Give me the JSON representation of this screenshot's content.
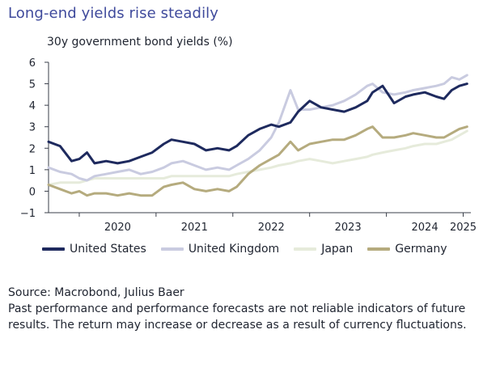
{
  "title": "Long-end yields rise steadily",
  "subtitle": "30y government bond yields (%)",
  "source": "Source: Macrobond, Julius Baer",
  "disclaimer": "Past performance and performance forecasts are not reliable indicators of future results. The return may increase or decrease as a result of currency fluctuations.",
  "colors": {
    "United States": "#1e2a5e",
    "United Kingdom": "#c9cbe0",
    "Japan": "#e6ebdb",
    "Germany": "#b5ab7e"
  },
  "chart_data": {
    "type": "line",
    "title": "30y government bond yields (%)",
    "xlabel": "",
    "ylabel": "",
    "xlim": [
      2019.6,
      2025.1
    ],
    "ylim": [
      -1,
      6
    ],
    "yticks": [
      -1,
      0,
      1,
      2,
      3,
      4,
      5,
      6
    ],
    "xticks": [
      "2020",
      "2021",
      "2022",
      "2023",
      "2024",
      "2025"
    ],
    "grid": false,
    "legend": "bottom",
    "series": [
      {
        "name": "United States",
        "x": [
          2019.6,
          2019.75,
          2019.9,
          2020.0,
          2020.1,
          2020.2,
          2020.35,
          2020.5,
          2020.65,
          2020.8,
          2020.95,
          2021.1,
          2021.2,
          2021.35,
          2021.5,
          2021.65,
          2021.8,
          2021.95,
          2022.05,
          2022.2,
          2022.35,
          2022.5,
          2022.6,
          2022.75,
          2022.85,
          2023.0,
          2023.15,
          2023.3,
          2023.45,
          2023.6,
          2023.75,
          2023.82,
          2023.95,
          2024.1,
          2024.25,
          2024.35,
          2024.5,
          2024.65,
          2024.75,
          2024.85,
          2024.95,
          2025.05
        ],
        "y": [
          2.3,
          2.1,
          1.4,
          1.5,
          1.8,
          1.3,
          1.4,
          1.3,
          1.4,
          1.6,
          1.8,
          2.2,
          2.4,
          2.3,
          2.2,
          1.9,
          2.0,
          1.9,
          2.1,
          2.6,
          2.9,
          3.1,
          3.0,
          3.2,
          3.7,
          4.2,
          3.9,
          3.8,
          3.7,
          3.9,
          4.2,
          4.6,
          4.9,
          4.1,
          4.4,
          4.5,
          4.6,
          4.4,
          4.3,
          4.7,
          4.9,
          5.0
        ]
      },
      {
        "name": "United Kingdom",
        "x": [
          2019.6,
          2019.75,
          2019.9,
          2020.0,
          2020.1,
          2020.2,
          2020.35,
          2020.5,
          2020.65,
          2020.8,
          2020.95,
          2021.1,
          2021.2,
          2021.35,
          2021.5,
          2021.65,
          2021.8,
          2021.95,
          2022.05,
          2022.2,
          2022.35,
          2022.5,
          2022.6,
          2022.75,
          2022.85,
          2023.0,
          2023.15,
          2023.3,
          2023.45,
          2023.6,
          2023.75,
          2023.82,
          2023.95,
          2024.1,
          2024.25,
          2024.35,
          2024.5,
          2024.65,
          2024.75,
          2024.85,
          2024.95,
          2025.05
        ],
        "y": [
          1.1,
          0.9,
          0.8,
          0.6,
          0.5,
          0.7,
          0.8,
          0.9,
          1.0,
          0.8,
          0.9,
          1.1,
          1.3,
          1.4,
          1.2,
          1.0,
          1.1,
          1.0,
          1.2,
          1.5,
          1.9,
          2.5,
          3.2,
          4.7,
          3.8,
          3.8,
          3.9,
          4.0,
          4.2,
          4.5,
          4.9,
          5.0,
          4.6,
          4.5,
          4.6,
          4.7,
          4.8,
          4.9,
          5.0,
          5.3,
          5.2,
          5.4
        ]
      },
      {
        "name": "Japan",
        "x": [
          2019.6,
          2019.75,
          2019.9,
          2020.0,
          2020.1,
          2020.2,
          2020.35,
          2020.5,
          2020.65,
          2020.8,
          2020.95,
          2021.1,
          2021.2,
          2021.35,
          2021.5,
          2021.65,
          2021.8,
          2021.95,
          2022.05,
          2022.2,
          2022.35,
          2022.5,
          2022.6,
          2022.75,
          2022.85,
          2023.0,
          2023.15,
          2023.3,
          2023.45,
          2023.6,
          2023.75,
          2023.82,
          2023.95,
          2024.1,
          2024.25,
          2024.35,
          2024.5,
          2024.65,
          2024.75,
          2024.85,
          2024.95,
          2025.05
        ],
        "y": [
          0.3,
          0.4,
          0.4,
          0.4,
          0.5,
          0.6,
          0.6,
          0.6,
          0.6,
          0.6,
          0.6,
          0.6,
          0.7,
          0.7,
          0.7,
          0.7,
          0.7,
          0.7,
          0.8,
          0.9,
          1.0,
          1.1,
          1.2,
          1.3,
          1.4,
          1.5,
          1.4,
          1.3,
          1.4,
          1.5,
          1.6,
          1.7,
          1.8,
          1.9,
          2.0,
          2.1,
          2.2,
          2.2,
          2.3,
          2.4,
          2.6,
          2.8
        ]
      },
      {
        "name": "Germany",
        "x": [
          2019.6,
          2019.75,
          2019.9,
          2020.0,
          2020.1,
          2020.2,
          2020.35,
          2020.5,
          2020.65,
          2020.8,
          2020.95,
          2021.1,
          2021.2,
          2021.35,
          2021.5,
          2021.65,
          2021.8,
          2021.95,
          2022.05,
          2022.2,
          2022.35,
          2022.5,
          2022.6,
          2022.75,
          2022.85,
          2023.0,
          2023.15,
          2023.3,
          2023.45,
          2023.6,
          2023.75,
          2023.82,
          2023.95,
          2024.1,
          2024.25,
          2024.35,
          2024.5,
          2024.65,
          2024.75,
          2024.85,
          2024.95,
          2025.05
        ],
        "y": [
          0.3,
          0.1,
          -0.1,
          0.0,
          -0.2,
          -0.1,
          -0.1,
          -0.2,
          -0.1,
          -0.2,
          -0.2,
          0.2,
          0.3,
          0.4,
          0.1,
          0.0,
          0.1,
          0.0,
          0.2,
          0.8,
          1.2,
          1.5,
          1.7,
          2.3,
          1.9,
          2.2,
          2.3,
          2.4,
          2.4,
          2.6,
          2.9,
          3.0,
          2.5,
          2.5,
          2.6,
          2.7,
          2.6,
          2.5,
          2.5,
          2.7,
          2.9,
          3.0
        ]
      }
    ]
  }
}
